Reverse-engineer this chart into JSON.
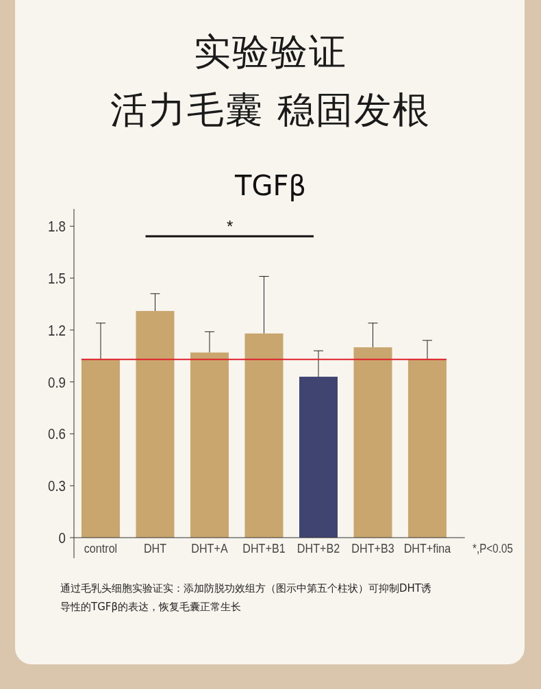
{
  "chart_data": [
    {
      "type": "other",
      "title": "实验验证",
      "subtitle": "活力毛囊 稳固发根"
    },
    {
      "type": "bar",
      "title": "TGFβ",
      "categories": [
        "control",
        "DHT",
        "DHT+A",
        "DHT+B1",
        "DHT+B2",
        "DHT+B3",
        "DHT+fina"
      ],
      "values": [
        1.03,
        1.31,
        1.07,
        1.18,
        0.93,
        1.1,
        1.03
      ],
      "colors": [
        "#c9a66d",
        "#c9a66d",
        "#c9a66d",
        "#c9a66d",
        "#3f4470",
        "#c9a66d",
        "#c9a66d"
      ],
      "errors": [
        [
          1.03,
          1.24
        ],
        [
          1.31,
          1.41
        ],
        [
          1.07,
          1.19
        ],
        [
          1.18,
          1.51
        ],
        [
          0.93,
          1.08
        ],
        [
          1.1,
          1.24
        ],
        [
          1.03,
          1.14
        ]
      ],
      "ylim": [
        0,
        1.9
      ],
      "yticks": [
        0,
        0.3,
        0.6,
        0.9,
        1.2,
        1.5,
        1.8
      ],
      "ref_lines": [
        {
          "axis": "y",
          "value": 1.03,
          "color": "#e0202c"
        }
      ],
      "annotations": [
        "*",
        "*,P<0.05",
        "通过毛乳头细胞实验证实：添加防脱功效组方（图示中第五个柱状）可抑制DHT诱导性的TGFβ的表达，恢复毛囊正常生长"
      ],
      "grid": false
    }
  ]
}
